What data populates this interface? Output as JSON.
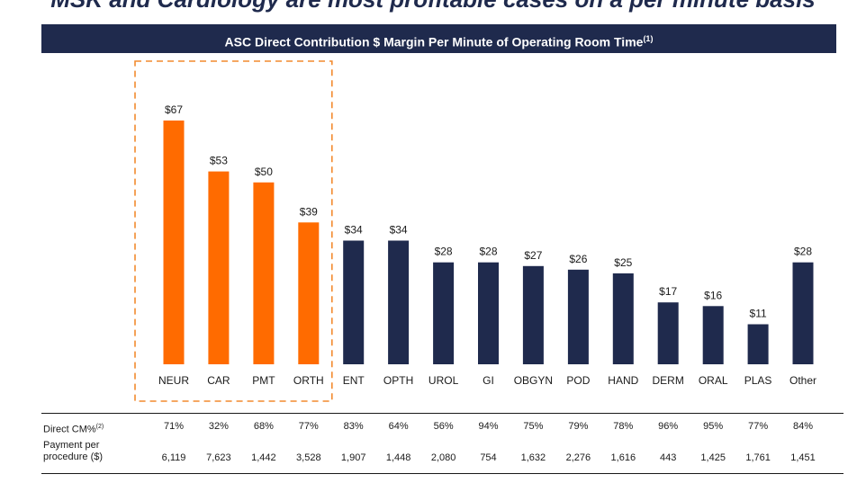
{
  "headline": "MSK and Cardiology are most profitable cases on a per minute basis",
  "chart_title": "ASC Direct Contribution $ Margin Per Minute of Operating Room Time",
  "chart_title_note": "(1)",
  "colors": {
    "highlight": "#FF6B00",
    "base": "#1F2A4D",
    "frame": "#F28A2E"
  },
  "chart_data": {
    "type": "bar",
    "title": "ASC Direct Contribution $ Margin Per Minute of Operating Room Time",
    "categories": [
      "NEUR",
      "CAR",
      "PMT",
      "ORTH",
      "ENT",
      "OPTH",
      "UROL",
      "GI",
      "OBGYN",
      "POD",
      "HAND",
      "DERM",
      "ORAL",
      "PLAS",
      "Other"
    ],
    "values": [
      67,
      53,
      50,
      39,
      34,
      34,
      28,
      28,
      27,
      26,
      25,
      17,
      16,
      11,
      28
    ],
    "labels": [
      "$67",
      "$53",
      "$50",
      "$39",
      "$34",
      "$34",
      "$28",
      "$28",
      "$27",
      "$26",
      "$25",
      "$17",
      "$16",
      "$11",
      "$28"
    ],
    "highlighted": [
      "NEUR",
      "CAR",
      "PMT",
      "ORTH"
    ],
    "unit": "$",
    "ylim": [
      0,
      67
    ],
    "grid": false
  },
  "table": {
    "rows": [
      {
        "label": "Direct CM%",
        "note": "(2)",
        "values": [
          "71%",
          "32%",
          "68%",
          "77%",
          "83%",
          "64%",
          "56%",
          "94%",
          "75%",
          "79%",
          "78%",
          "96%",
          "95%",
          "77%",
          "84%"
        ]
      },
      {
        "label_line1": "Payment per",
        "label_line2": "procedure ($)",
        "values": [
          "6,119",
          "7,623",
          "1,442",
          "3,528",
          "1,907",
          "1,448",
          "2,080",
          "754",
          "1,632",
          "2,276",
          "1,616",
          "443",
          "1,425",
          "1,761",
          "1,451"
        ]
      }
    ]
  }
}
